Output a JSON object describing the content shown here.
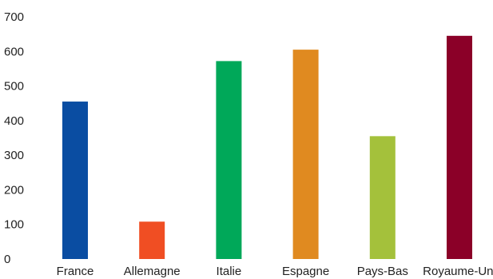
{
  "chart_data": {
    "type": "bar",
    "title": "",
    "xlabel": "",
    "ylabel": "",
    "categories": [
      "France",
      "Allemagne",
      "Italie",
      "Espagne",
      "Pays-Bas",
      "Royaume-Uni"
    ],
    "values": [
      455,
      108,
      572,
      605,
      355,
      645
    ],
    "colors": [
      "#0a4da2",
      "#f04e23",
      "#00a859",
      "#e08a20",
      "#a4c13b",
      "#8b0028"
    ],
    "ylim": [
      0,
      700
    ],
    "yticks": [
      0,
      100,
      200,
      300,
      400,
      500,
      600,
      700
    ],
    "grid": false,
    "legend": "none"
  }
}
